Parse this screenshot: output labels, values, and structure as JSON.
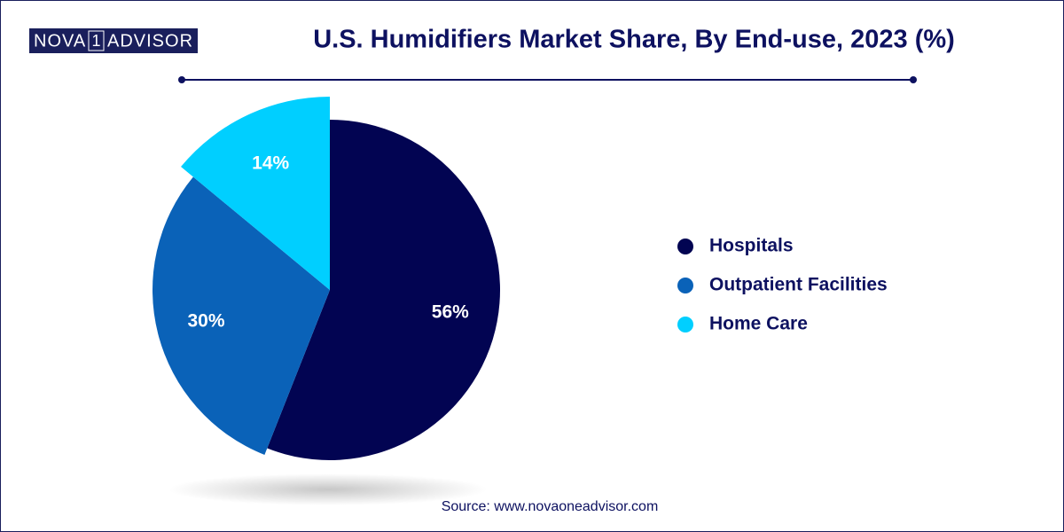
{
  "logo": {
    "left": "NOVA",
    "mark": "1",
    "right": "ADVISOR"
  },
  "chart_data": {
    "type": "pie",
    "title": "U.S. Humidifiers Market Share, By End-use, 2023 (%)",
    "categories": [
      "Hospitals",
      "Outpatient Facilities",
      "Home Care"
    ],
    "values": [
      56,
      30,
      14
    ],
    "value_labels": [
      "56%",
      "30%",
      "14%"
    ],
    "colors": [
      "#020452",
      "#0a62b8",
      "#00cfff"
    ],
    "source": "Source: www.novaoneadvisor.com"
  }
}
